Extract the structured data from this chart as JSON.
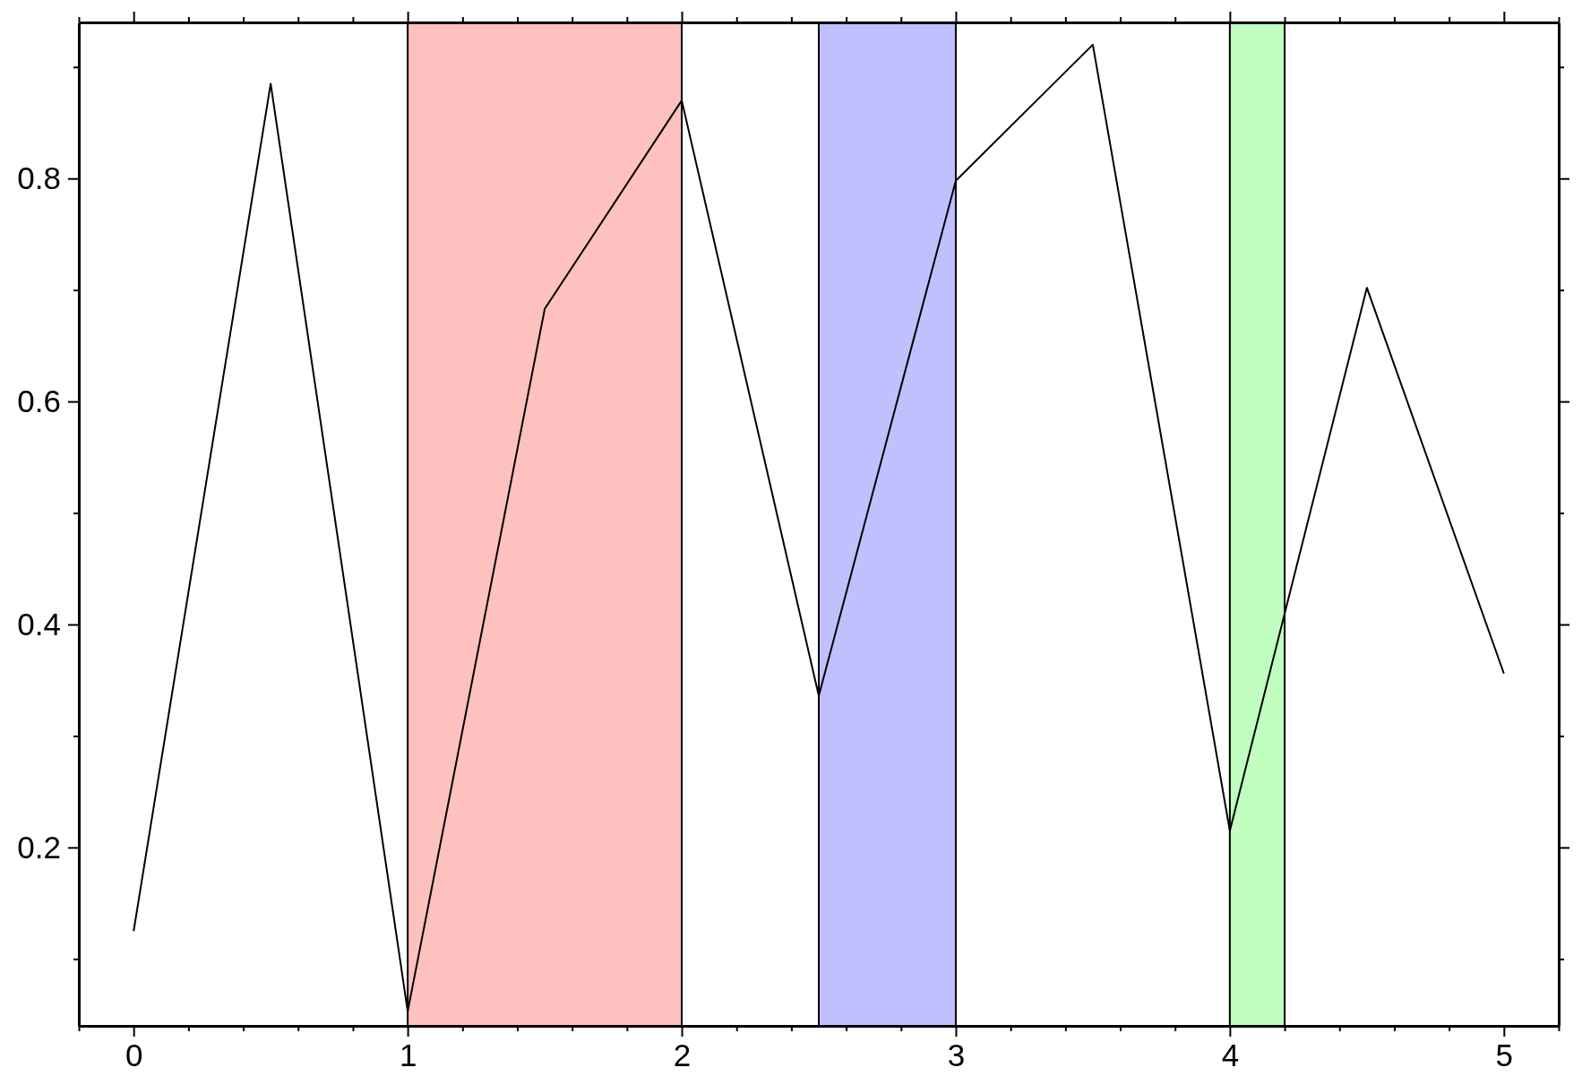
{
  "chart_data": {
    "type": "line",
    "x": [
      0,
      0.5,
      1,
      1.5,
      2,
      2.5,
      3,
      3.5,
      4,
      4.5,
      5
    ],
    "series": [
      {
        "color": "#000000",
        "values": [
          0.125,
          0.885,
          0.053,
          0.683,
          0.87,
          0.336,
          0.798,
          0.92,
          0.215,
          0.702,
          0.356
        ]
      }
    ],
    "xlim": [
      -0.2,
      5.2
    ],
    "xticks": [
      {
        "value": -0.2,
        "label": null
      },
      0,
      {
        "value": 0.2,
        "label": null
      },
      {
        "value": 0.4,
        "label": null
      },
      {
        "value": 0.6,
        "label": null
      },
      {
        "value": 0.8,
        "label": null
      },
      1,
      {
        "value": 1.2,
        "label": null
      },
      {
        "value": 1.4,
        "label": null
      },
      {
        "value": 1.6,
        "label": null
      },
      {
        "value": 1.8,
        "label": null
      },
      2,
      {
        "value": 2.2,
        "label": null
      },
      {
        "value": 2.4,
        "label": null
      },
      {
        "value": 2.6,
        "label": null
      },
      {
        "value": 2.8,
        "label": null
      },
      3,
      {
        "value": 3.2,
        "label": null
      },
      {
        "value": 3.4,
        "label": null
      },
      {
        "value": 3.6,
        "label": null
      },
      {
        "value": 3.8,
        "label": null
      },
      4,
      {
        "value": 4.2,
        "label": null
      },
      {
        "value": 4.4,
        "label": null
      },
      {
        "value": 4.6,
        "label": null
      },
      {
        "value": 4.8,
        "label": null
      },
      5,
      {
        "value": 5.2,
        "label": null
      }
    ],
    "ylim": [
      0.04,
      0.94
    ],
    "yticks": [
      {
        "value": 0.1,
        "label": null
      },
      0.2,
      {
        "value": 0.3,
        "label": null
      },
      0.4,
      {
        "value": 0.5,
        "label": null
      },
      0.6,
      {
        "value": 0.7,
        "label": null
      },
      0.8,
      {
        "value": 0.9,
        "label": null
      }
    ],
    "bands": [
      {
        "axis": "x",
        "from": 1,
        "to": 2,
        "color": "#ffc0c0"
      },
      {
        "axis": "x",
        "from": 2.5,
        "to": 3,
        "color": "#c0c0ff"
      },
      {
        "axis": "x",
        "from": 4,
        "to": 4.2,
        "color": "#c0ffc0"
      }
    ],
    "grid": false,
    "marker": "none",
    "line_style": "solid"
  }
}
